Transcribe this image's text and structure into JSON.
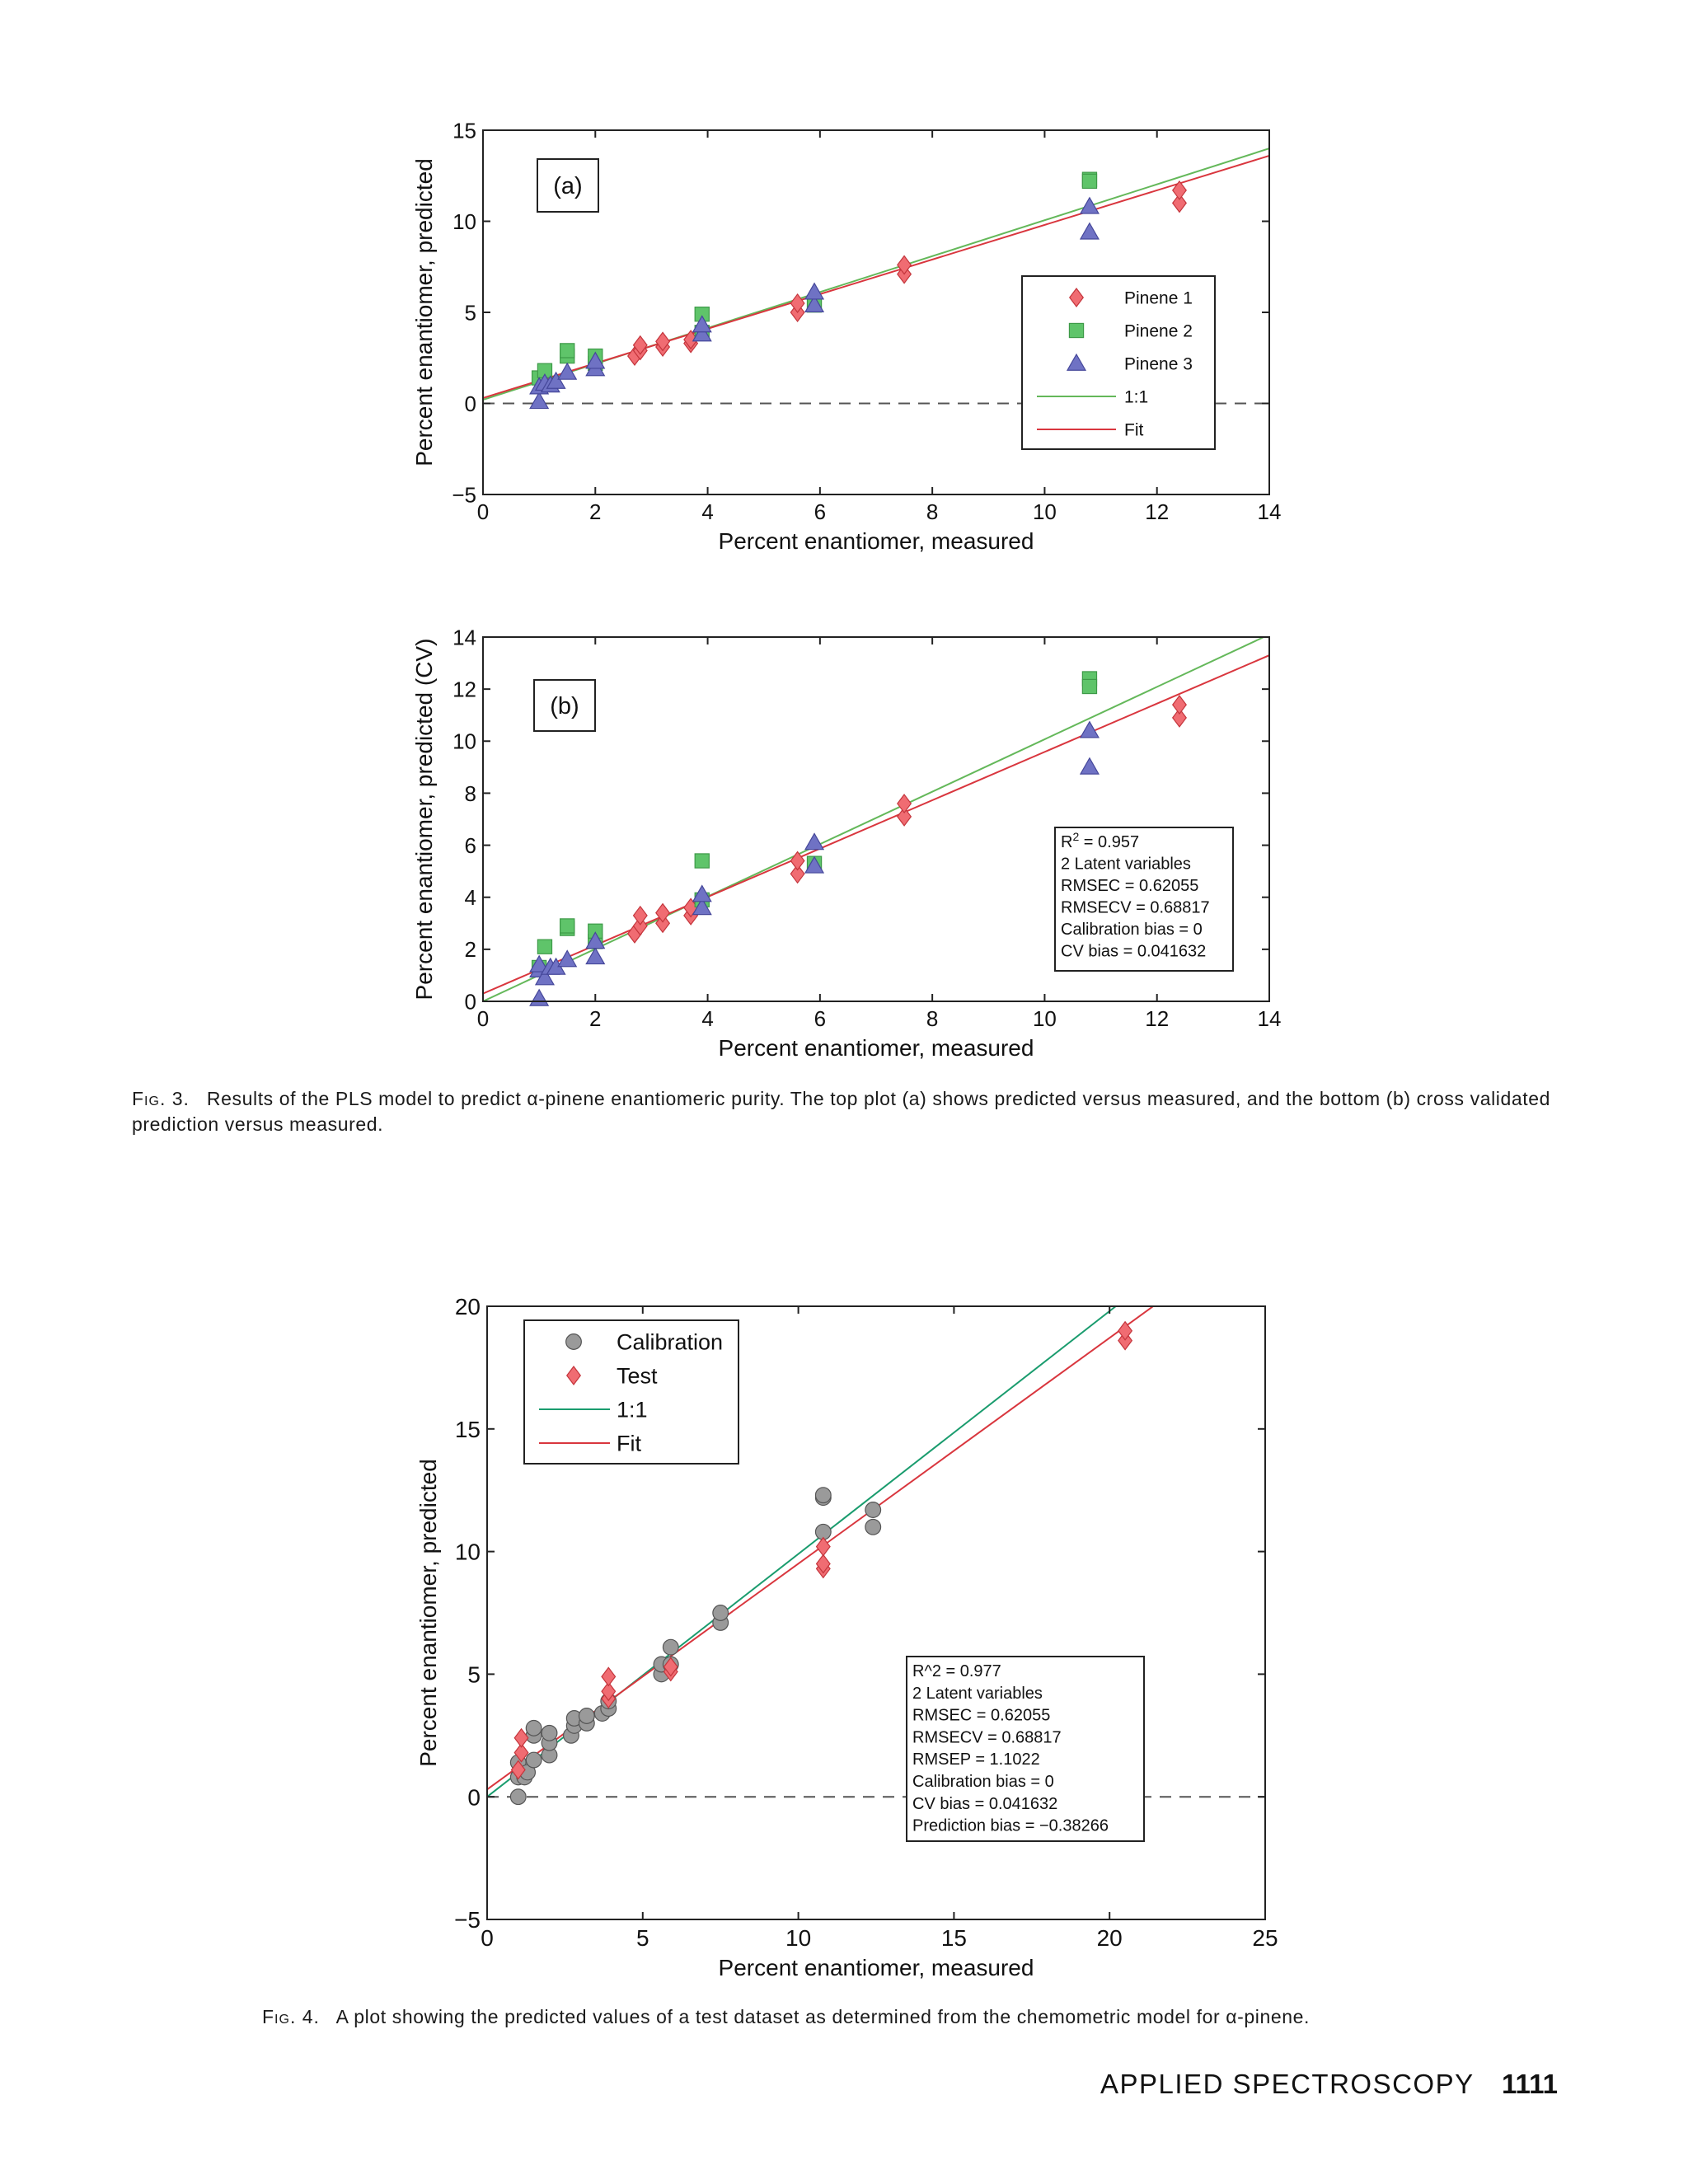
{
  "fig3": {
    "caption": {
      "label": "Fig. 3.",
      "text": "Results of the PLS model to predict α-pinene enantiomeric purity. The top plot (a) shows predicted versus measured, and the bottom (b) cross validated prediction versus measured."
    }
  },
  "fig4": {
    "caption": {
      "label": "Fig. 4.",
      "text": "A plot showing the predicted values of a test dataset as determined from the chemometric model for α-pinene."
    }
  },
  "footer": {
    "journal": "APPLIED SPECTROSCOPY",
    "page": "1111"
  },
  "colors": {
    "pinene1": "#f06c72",
    "pinene2": "#5fc46a",
    "pinene3": "#6f72c4",
    "oneToOne_fig3": "#64b85a",
    "oneToOne_fig4": "#1a9c6e",
    "fit": "#d9363e",
    "calibration": "#9a9a9a",
    "test": "#f06c72"
  },
  "chart_data": [
    {
      "id": "fig3a",
      "type": "scatter",
      "panel_label": "(a)",
      "xlabel": "Percent enantiomer, measured",
      "ylabel": "Percent enantiomer, predicted",
      "xlim": [
        0,
        14
      ],
      "ylim": [
        -5,
        15
      ],
      "xticks": [
        "0",
        "2",
        "4",
        "6",
        "8",
        "10",
        "12",
        "14"
      ],
      "yticks": [
        "−5",
        "0",
        "5",
        "10",
        "15"
      ],
      "grid": false,
      "legend": {
        "placement": "right"
      },
      "series": [
        {
          "name": "Pinene 1",
          "marker": "diamond",
          "color": "#f06c72",
          "points": [
            [
              2.7,
              2.6
            ],
            [
              2.8,
              2.9
            ],
            [
              2.8,
              3.2
            ],
            [
              3.2,
              3.1
            ],
            [
              3.2,
              3.4
            ],
            [
              3.7,
              3.3
            ],
            [
              3.7,
              3.5
            ],
            [
              5.6,
              5.0
            ],
            [
              5.6,
              5.5
            ],
            [
              7.5,
              7.1
            ],
            [
              7.5,
              7.6
            ],
            [
              12.4,
              11.0
            ],
            [
              12.4,
              11.7
            ]
          ]
        },
        {
          "name": "Pinene 2",
          "marker": "square",
          "color": "#5fc46a",
          "points": [
            [
              1.0,
              1.4
            ],
            [
              1.1,
              1.8
            ],
            [
              1.5,
              2.6
            ],
            [
              1.5,
              2.9
            ],
            [
              2.0,
              2.2
            ],
            [
              2.0,
              2.6
            ],
            [
              3.9,
              4.9
            ],
            [
              3.9,
              3.9
            ],
            [
              5.9,
              5.4
            ],
            [
              10.8,
              12.3
            ],
            [
              10.8,
              12.2
            ]
          ]
        },
        {
          "name": "Pinene 3",
          "marker": "triangle",
          "color": "#6f72c4",
          "points": [
            [
              1.0,
              0.1
            ],
            [
              1.0,
              0.9
            ],
            [
              1.1,
              1.1
            ],
            [
              1.2,
              1.0
            ],
            [
              1.3,
              1.2
            ],
            [
              1.5,
              1.7
            ],
            [
              2.0,
              1.9
            ],
            [
              2.0,
              2.3
            ],
            [
              3.9,
              3.8
            ],
            [
              3.9,
              4.3
            ],
            [
              5.9,
              5.4
            ],
            [
              5.9,
              6.1
            ],
            [
              10.8,
              10.8
            ],
            [
              10.8,
              9.4
            ]
          ]
        },
        {
          "name": "1:1",
          "type": "line",
          "color": "#64b85a",
          "points": [
            [
              0,
              0.2
            ],
            [
              14,
              14.0
            ]
          ]
        },
        {
          "name": "Fit",
          "type": "line",
          "color": "#d9363e",
          "points": [
            [
              0,
              0.3
            ],
            [
              14,
              13.6
            ]
          ]
        }
      ],
      "reference_line": {
        "y": 0,
        "style": "dashed"
      }
    },
    {
      "id": "fig3b",
      "type": "scatter",
      "panel_label": "(b)",
      "xlabel": "Percent enantiomer, measured",
      "ylabel": "Percent enantiomer, predicted (CV)",
      "xlim": [
        0,
        14
      ],
      "ylim": [
        0,
        14
      ],
      "xticks": [
        "0",
        "2",
        "4",
        "6",
        "8",
        "10",
        "12",
        "14"
      ],
      "yticks": [
        "0",
        "2",
        "4",
        "6",
        "8",
        "10",
        "12",
        "14"
      ],
      "grid": false,
      "stats": {
        "r2": "R2 = 0.957",
        "lines": [
          "2 Latent variables",
          "RMSEC = 0.62055",
          "RMSECV = 0.68817",
          "Calibration bias = 0",
          "CV bias = 0.041632"
        ]
      },
      "series": [
        {
          "name": "Pinene 1",
          "marker": "diamond",
          "color": "#f06c72",
          "points": [
            [
              2.7,
              2.6
            ],
            [
              2.8,
              2.9
            ],
            [
              2.8,
              3.3
            ],
            [
              3.2,
              3.0
            ],
            [
              3.2,
              3.4
            ],
            [
              3.7,
              3.3
            ],
            [
              3.7,
              3.6
            ],
            [
              5.6,
              4.9
            ],
            [
              5.6,
              5.4
            ],
            [
              7.5,
              7.1
            ],
            [
              7.5,
              7.6
            ],
            [
              12.4,
              10.9
            ],
            [
              12.4,
              11.4
            ]
          ]
        },
        {
          "name": "Pinene 2",
          "marker": "square",
          "color": "#5fc46a",
          "points": [
            [
              1.0,
              1.3
            ],
            [
              1.1,
              2.1
            ],
            [
              1.5,
              2.8
            ],
            [
              1.5,
              2.9
            ],
            [
              2.0,
              2.3
            ],
            [
              2.0,
              2.7
            ],
            [
              3.9,
              5.4
            ],
            [
              3.9,
              3.9
            ],
            [
              5.9,
              5.3
            ],
            [
              10.8,
              12.4
            ],
            [
              10.8,
              12.1
            ]
          ]
        },
        {
          "name": "Pinene 3",
          "marker": "triangle",
          "color": "#6f72c4",
          "points": [
            [
              1.0,
              0.1
            ],
            [
              1.0,
              1.2
            ],
            [
              1.0,
              1.4
            ],
            [
              1.1,
              0.9
            ],
            [
              1.2,
              1.3
            ],
            [
              1.3,
              1.3
            ],
            [
              1.5,
              1.6
            ],
            [
              2.0,
              1.7
            ],
            [
              2.0,
              2.3
            ],
            [
              3.9,
              3.6
            ],
            [
              3.9,
              4.1
            ],
            [
              5.9,
              5.2
            ],
            [
              5.9,
              6.1
            ],
            [
              10.8,
              10.4
            ],
            [
              10.8,
              9.0
            ]
          ]
        },
        {
          "name": "1:1",
          "type": "line",
          "color": "#64b85a",
          "points": [
            [
              0,
              0
            ],
            [
              14,
              14.1
            ]
          ]
        },
        {
          "name": "Fit",
          "type": "line",
          "color": "#d9363e",
          "points": [
            [
              0,
              0.3
            ],
            [
              14,
              13.3
            ]
          ]
        }
      ]
    },
    {
      "id": "fig4",
      "type": "scatter",
      "xlabel": "Percent enantiomer, measured",
      "ylabel": "Percent enantiomer, predicted",
      "xlim": [
        0,
        25
      ],
      "ylim": [
        -5,
        20
      ],
      "xticks": [
        "0",
        "5",
        "10",
        "15",
        "20",
        "25"
      ],
      "yticks": [
        "−5",
        "0",
        "5",
        "10",
        "15",
        "20"
      ],
      "grid": false,
      "legend": {
        "placement": "top-left"
      },
      "stats": {
        "lines": [
          "R^2 = 0.977",
          "2 Latent variables",
          "RMSEC = 0.62055",
          "RMSECV = 0.68817",
          "RMSEP = 1.1022",
          "Calibration bias = 0",
          "CV bias = 0.041632",
          "Prediction bias = −0.38266"
        ]
      },
      "series": [
        {
          "name": "Calibration",
          "marker": "circle",
          "color": "#9a9a9a",
          "points": [
            [
              1.0,
              0.0
            ],
            [
              1.0,
              0.8
            ],
            [
              1.0,
              1.4
            ],
            [
              1.2,
              0.8
            ],
            [
              1.3,
              1.0
            ],
            [
              1.5,
              1.5
            ],
            [
              1.5,
              2.5
            ],
            [
              1.5,
              2.8
            ],
            [
              2.0,
              1.7
            ],
            [
              2.0,
              2.2
            ],
            [
              2.0,
              2.6
            ],
            [
              2.7,
              2.5
            ],
            [
              2.8,
              2.9
            ],
            [
              2.8,
              3.2
            ],
            [
              3.2,
              3.0
            ],
            [
              3.2,
              3.3
            ],
            [
              3.7,
              3.4
            ],
            [
              3.9,
              3.6
            ],
            [
              3.9,
              3.9
            ],
            [
              5.6,
              5.0
            ],
            [
              5.6,
              5.4
            ],
            [
              5.9,
              5.4
            ],
            [
              5.9,
              6.1
            ],
            [
              7.5,
              7.1
            ],
            [
              7.5,
              7.5
            ],
            [
              10.8,
              10.8
            ],
            [
              10.8,
              12.2
            ],
            [
              10.8,
              12.3
            ],
            [
              12.4,
              11.0
            ],
            [
              12.4,
              11.7
            ]
          ]
        },
        {
          "name": "Test",
          "marker": "diamond",
          "color": "#f06c72",
          "points": [
            [
              1.0,
              1.1
            ],
            [
              1.1,
              1.8
            ],
            [
              1.1,
              2.4
            ],
            [
              3.9,
              4.0
            ],
            [
              3.9,
              4.3
            ],
            [
              3.9,
              4.9
            ],
            [
              5.9,
              5.1
            ],
            [
              5.9,
              5.3
            ],
            [
              10.8,
              9.3
            ],
            [
              10.8,
              9.5
            ],
            [
              10.8,
              10.2
            ],
            [
              20.5,
              18.6
            ],
            [
              20.5,
              19.0
            ]
          ]
        },
        {
          "name": "1:1",
          "type": "line",
          "color": "#1a9c6e",
          "points": [
            [
              0,
              0
            ],
            [
              20.2,
              20
            ]
          ]
        },
        {
          "name": "Fit",
          "type": "line",
          "color": "#d9363e",
          "points": [
            [
              0,
              0.3
            ],
            [
              21.4,
              20
            ]
          ]
        }
      ],
      "reference_line": {
        "y": 0,
        "style": "dashed"
      }
    }
  ]
}
